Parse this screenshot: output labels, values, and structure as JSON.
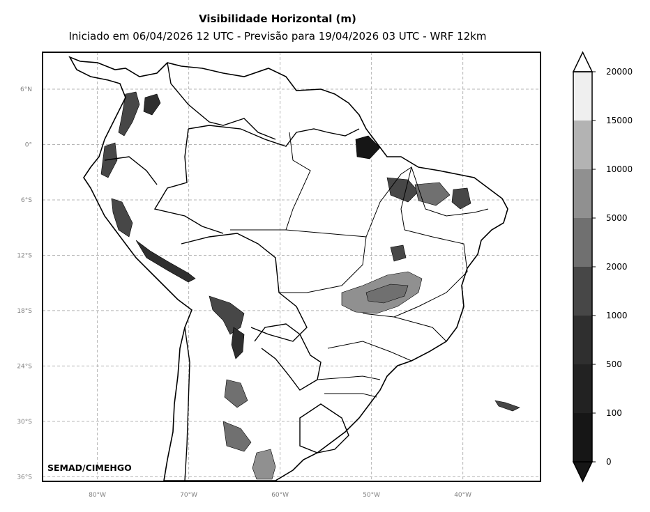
{
  "title": "Visibilidade Horizontal (m)",
  "subtitle": "Iniciado em 06/04/2026 12 UTC - Previsão para 19/04/2026 03 UTC - WRF 12km",
  "credit": "SEMAD/CIMEHGO",
  "map": {
    "lon_range": [
      -86,
      -31.5
    ],
    "lat_range": [
      -36.5,
      10
    ],
    "lat_ticks": [
      {
        "value": 6,
        "label": "6°N"
      },
      {
        "value": 0,
        "label": "0°"
      },
      {
        "value": -6,
        "label": "6°S"
      },
      {
        "value": -12,
        "label": "12°S"
      },
      {
        "value": -18,
        "label": "18°S"
      },
      {
        "value": -24,
        "label": "24°S"
      },
      {
        "value": -30,
        "label": "30°S"
      },
      {
        "value": -36,
        "label": "36°S"
      }
    ],
    "lon_ticks": [
      {
        "value": -80,
        "label": "80°W"
      },
      {
        "value": -70,
        "label": "70°W"
      },
      {
        "value": -60,
        "label": "60°W"
      },
      {
        "value": -50,
        "label": "50°W"
      },
      {
        "value": -40,
        "label": "40°W"
      }
    ],
    "gridlines": true
  },
  "colorbar": {
    "levels": [
      "0",
      "100",
      "500",
      "1000",
      "2000",
      "5000",
      "10000",
      "15000",
      "20000"
    ],
    "colors": [
      "#161616",
      "#222222",
      "#2f2f2f",
      "#474747",
      "#707070",
      "#909090",
      "#b3b3b3",
      "#efefef"
    ],
    "extend": "both"
  }
}
